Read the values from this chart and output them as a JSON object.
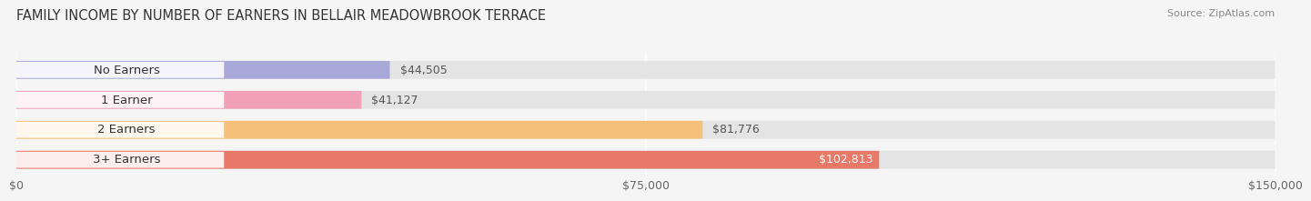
{
  "title": "FAMILY INCOME BY NUMBER OF EARNERS IN BELLAIR MEADOWBROOK TERRACE",
  "source": "Source: ZipAtlas.com",
  "categories": [
    "No Earners",
    "1 Earner",
    "2 Earners",
    "3+ Earners"
  ],
  "values": [
    44505,
    41127,
    81776,
    102813
  ],
  "bar_colors": [
    "#a8a8d8",
    "#f0a0b8",
    "#f5c07a",
    "#e87868"
  ],
  "bar_bg_color": "#e4e4e4",
  "value_labels": [
    "$44,505",
    "$41,127",
    "$81,776",
    "$102,813"
  ],
  "value_inside": [
    false,
    false,
    false,
    true
  ],
  "xlim": [
    0,
    150000
  ],
  "xticks": [
    0,
    75000,
    150000
  ],
  "xtick_labels": [
    "$0",
    "$75,000",
    "$150,000"
  ],
  "background_color": "#f5f5f5",
  "title_fontsize": 10.5,
  "source_fontsize": 8.0,
  "label_fontsize": 9.5,
  "value_fontsize": 9.0,
  "tick_fontsize": 9.0
}
